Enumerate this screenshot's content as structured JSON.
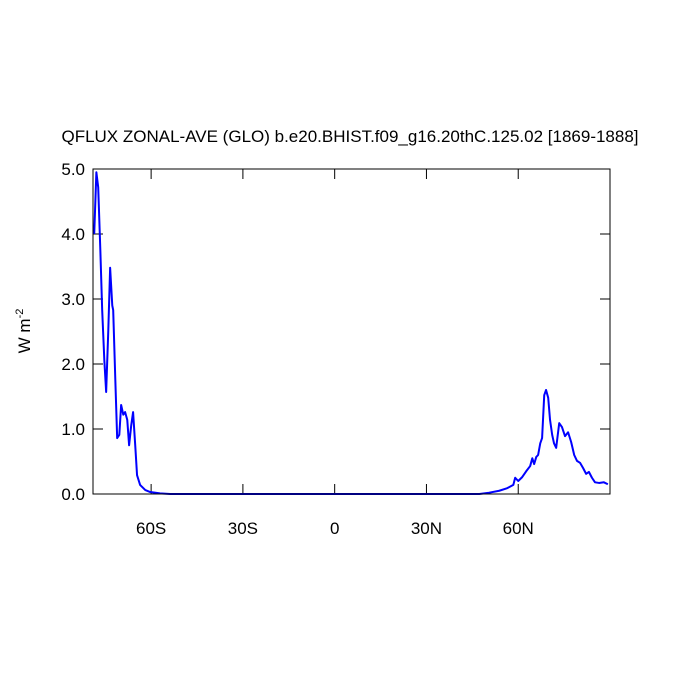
{
  "chart_data": {
    "type": "line",
    "title": "QFLUX ZONAL-AVE (GLO) b.e20.BHIST.f09_g16.20thC.125.02 [1869-1888]",
    "ylabel": {
      "text": "W m",
      "superscript": "-2"
    },
    "xlim": [
      -79,
      90
    ],
    "ylim": [
      0,
      5
    ],
    "xticks": [
      {
        "value": -60,
        "label": "60S"
      },
      {
        "value": -30,
        "label": "30S"
      },
      0,
      {
        "value": 30,
        "label": "30N"
      },
      {
        "value": 60,
        "label": "60N"
      }
    ],
    "yticks": [
      {
        "value": 0,
        "label": "0.0"
      },
      {
        "value": 1,
        "label": "1.0"
      },
      {
        "value": 2,
        "label": "2.0"
      },
      {
        "value": 3,
        "label": "3.0"
      },
      {
        "value": 4,
        "label": "4.0"
      },
      {
        "value": 5,
        "label": "5.0"
      }
    ],
    "grid": false,
    "series": [
      {
        "color": "#0000ff",
        "x": [
          -78.6,
          -77.9,
          -77.3,
          -76.6,
          -76.0,
          -75.3,
          -74.7,
          -74.0,
          -73.4,
          -72.7,
          -72.4,
          -71.7,
          -71.1,
          -70.4,
          -69.8,
          -69.1,
          -68.5,
          -67.8,
          -67.2,
          -66.5,
          -65.9,
          -65.2,
          -64.6,
          -63.6,
          -61.9,
          -60.3,
          -57.1,
          -53.8,
          -30,
          0,
          30,
          47.3,
          50.5,
          53.8,
          56.4,
          58.4,
          59.0,
          60.0,
          61.3,
          62.6,
          63.9,
          64.6,
          65.2,
          65.9,
          66.5,
          67.2,
          67.8,
          68.5,
          69.1,
          69.8,
          70.4,
          71.1,
          71.7,
          72.4,
          73.4,
          74.3,
          75.3,
          76.3,
          77.3,
          78.3,
          79.2,
          80.2,
          81.2,
          82.2,
          83.1,
          84.1,
          85.1,
          86.4,
          88.0,
          89.3
        ],
        "values": [
          4.0,
          4.95,
          4.72,
          3.75,
          2.83,
          2.06,
          1.57,
          2.52,
          3.48,
          2.9,
          2.83,
          1.75,
          0.86,
          0.91,
          1.37,
          1.22,
          1.26,
          1.14,
          0.75,
          1.06,
          1.26,
          0.75,
          0.29,
          0.14,
          0.06,
          0.03,
          0.01,
          0.0,
          0.0,
          0.0,
          0.0,
          0.0,
          0.02,
          0.05,
          0.09,
          0.14,
          0.25,
          0.2,
          0.26,
          0.35,
          0.43,
          0.55,
          0.46,
          0.57,
          0.6,
          0.78,
          0.86,
          1.52,
          1.6,
          1.48,
          1.14,
          0.91,
          0.78,
          0.71,
          1.09,
          1.03,
          0.89,
          0.95,
          0.8,
          0.6,
          0.51,
          0.48,
          0.4,
          0.31,
          0.34,
          0.25,
          0.18,
          0.17,
          0.18,
          0.15
        ]
      }
    ]
  }
}
